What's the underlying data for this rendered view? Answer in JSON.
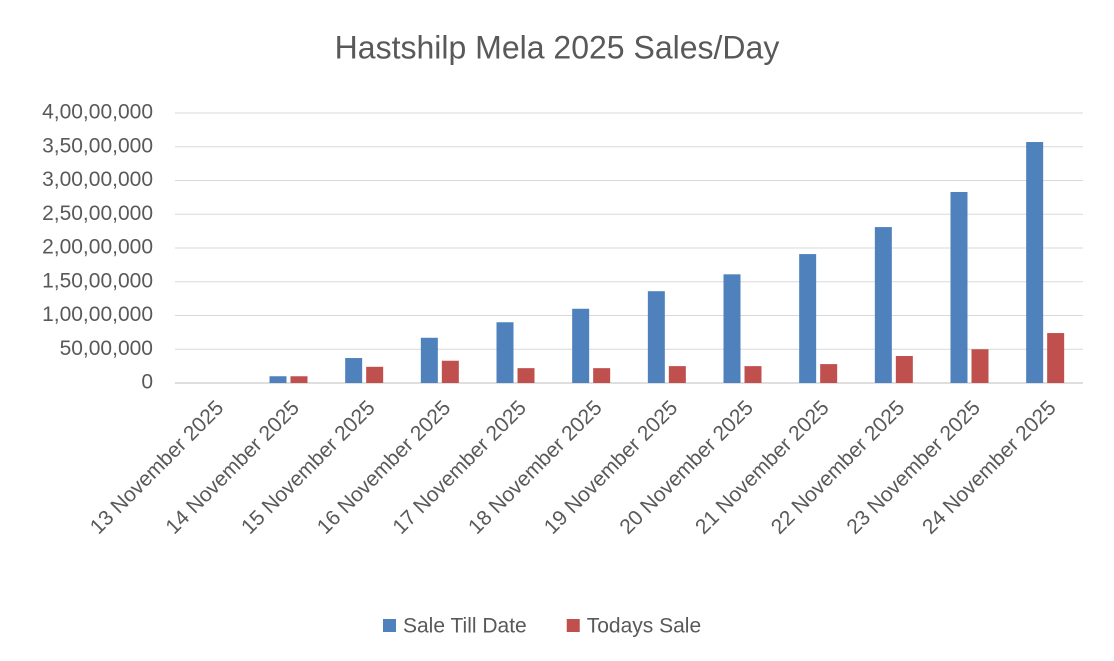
{
  "chart_data": {
    "type": "bar",
    "title": "Hastshilp Mela  2025 Sales/Day",
    "categories": [
      "13 November 2025",
      "14 November 2025",
      "15 November 2025",
      "16 November 2025",
      "17 November 2025",
      "18 November 2025",
      "19 November 2025",
      "20 November 2025",
      "21 November 2025",
      "22 November 2025",
      "23 November 2025",
      "24 November 2025"
    ],
    "series": [
      {
        "name": "Sale Till Date",
        "color": "#4f81bd",
        "values": [
          0,
          1000000,
          3700000,
          6700000,
          9000000,
          11000000,
          13600000,
          16100000,
          19100000,
          23100000,
          28300000,
          35700000
        ]
      },
      {
        "name": "Todays Sale",
        "color": "#c0504d",
        "values": [
          0,
          1000000,
          2400000,
          3300000,
          2200000,
          2200000,
          2500000,
          2500000,
          2800000,
          4000000,
          5000000,
          7400000
        ]
      }
    ],
    "ylim": [
      0,
      40000000
    ],
    "yticks": [
      0,
      {
        "value": 5000000,
        "label": "50,00,000"
      },
      {
        "value": 10000000,
        "label": "1,00,00,000"
      },
      {
        "value": 15000000,
        "label": "1,50,00,000"
      },
      {
        "value": 20000000,
        "label": "2,00,00,000"
      },
      {
        "value": 25000000,
        "label": "2,50,00,000"
      },
      {
        "value": 30000000,
        "label": "3,00,00,000"
      },
      {
        "value": 35000000,
        "label": "3,50,00,000"
      },
      {
        "value": 40000000,
        "label": "4,00,00,000"
      }
    ],
    "grid": true,
    "legend": "bottom"
  }
}
